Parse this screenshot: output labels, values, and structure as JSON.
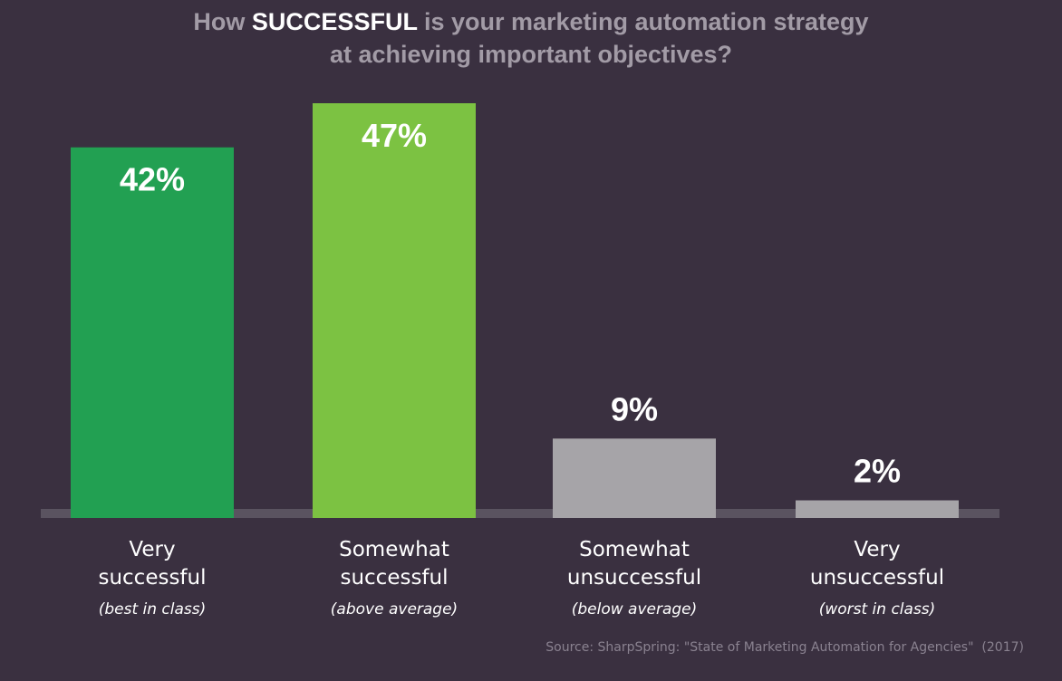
{
  "title": {
    "line1_prefix": "How ",
    "line1_emphasis": "SUCCESSFUL",
    "line1_suffix": " is your marketing automation strategy",
    "line2": "at achieving important objectives?"
  },
  "source": "Source: SharpSpring: \"State of Marketing Automation for Agencies\"  (2017)",
  "colors": {
    "background": "#3a3040",
    "very_successful": "#22a052",
    "somewhat_successful": "#7cc242",
    "unsuccessful": "#a6a4a8",
    "baseline": "#5a5360",
    "text": "#ffffff",
    "title_muted": "#a29ba6"
  },
  "chart_data": {
    "type": "bar",
    "title": "How SUCCESSFUL is your marketing automation strategy at achieving important objectives?",
    "categories": [
      "Very successful (best in class)",
      "Somewhat successful (above average)",
      "Somewhat unsuccessful (below average)",
      "Very unsuccessful (worst in class)"
    ],
    "values": [
      42,
      47,
      9,
      2
    ],
    "value_labels": [
      "42%",
      "47%",
      "9%",
      "2%"
    ],
    "category_lines": [
      [
        "Very",
        "successful"
      ],
      [
        "Somewhat",
        "successful"
      ],
      [
        "Somewhat",
        "unsuccessful"
      ],
      [
        "Very",
        "unsuccessful"
      ]
    ],
    "category_subs": [
      "(best in class)",
      "(above average)",
      "(below average)",
      "(worst in class)"
    ],
    "bar_colors": [
      "#22a052",
      "#7cc242",
      "#a6a4a8",
      "#a6a4a8"
    ],
    "ylim": [
      0,
      47
    ],
    "grid": false,
    "legend": "none",
    "xlabel": "",
    "ylabel": ""
  }
}
